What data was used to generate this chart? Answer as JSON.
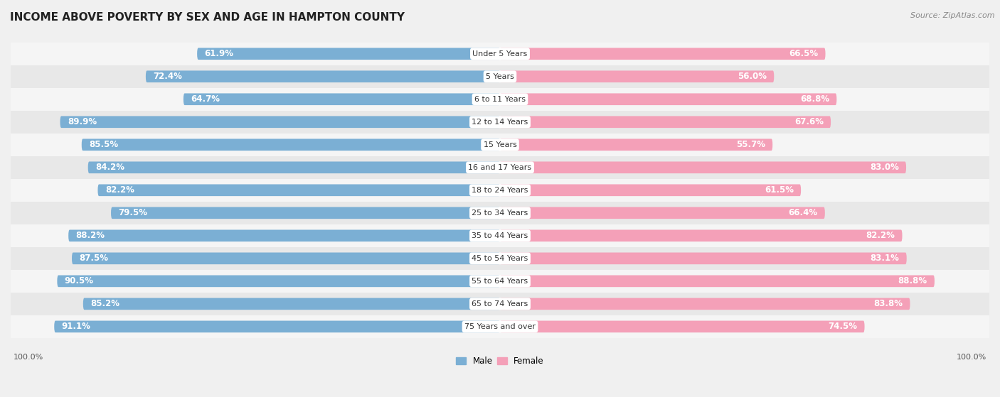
{
  "title": "INCOME ABOVE POVERTY BY SEX AND AGE IN HAMPTON COUNTY",
  "source": "Source: ZipAtlas.com",
  "categories": [
    "Under 5 Years",
    "5 Years",
    "6 to 11 Years",
    "12 to 14 Years",
    "15 Years",
    "16 and 17 Years",
    "18 to 24 Years",
    "25 to 34 Years",
    "35 to 44 Years",
    "45 to 54 Years",
    "55 to 64 Years",
    "65 to 74 Years",
    "75 Years and over"
  ],
  "male_values": [
    61.9,
    72.4,
    64.7,
    89.9,
    85.5,
    84.2,
    82.2,
    79.5,
    88.2,
    87.5,
    90.5,
    85.2,
    91.1
  ],
  "female_values": [
    66.5,
    56.0,
    68.8,
    67.6,
    55.7,
    83.0,
    61.5,
    66.4,
    82.2,
    83.1,
    88.8,
    83.8,
    74.5
  ],
  "male_color": "#7bafd4",
  "female_color": "#f4a0b8",
  "male_label": "Male",
  "female_label": "Female",
  "max_val": 100.0,
  "bg_color": "#f0f0f0",
  "row_colors": [
    "#f5f5f5",
    "#e8e8e8"
  ],
  "bar_height": 0.52,
  "title_fontsize": 11,
  "label_fontsize": 8.5,
  "tick_fontsize": 8,
  "source_fontsize": 8
}
